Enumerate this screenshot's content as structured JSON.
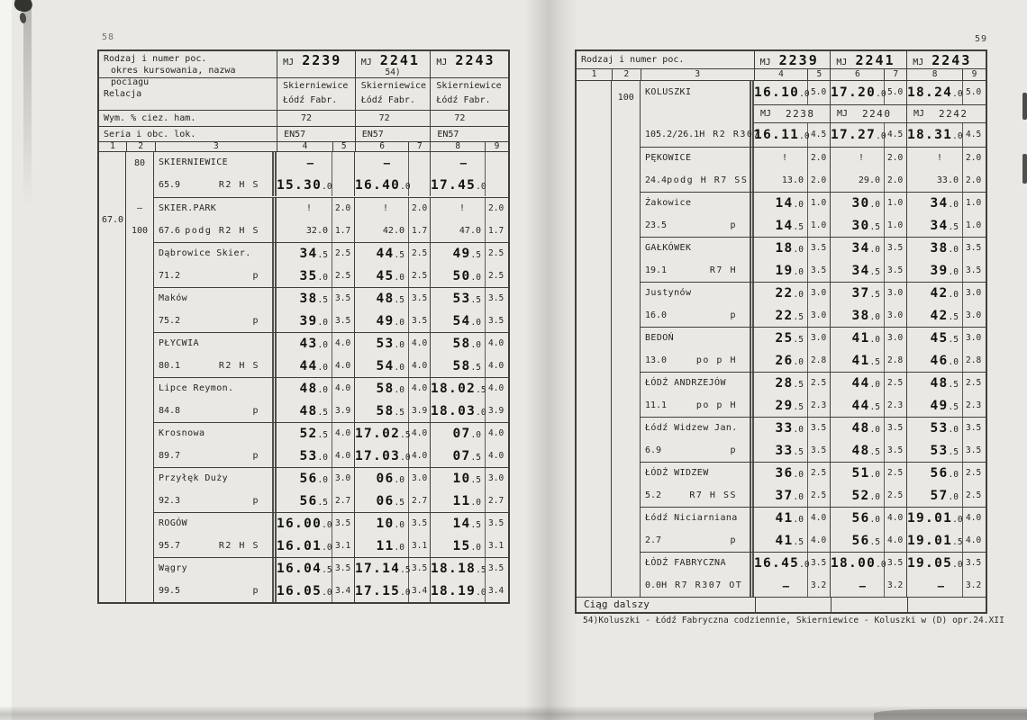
{
  "scan": {
    "left_page_number": "58",
    "right_page_number": "59"
  },
  "left": {
    "header": {
      "kind_line1": "Rodzaj i numer poc.",
      "kind_line2": "okres kursowania, nazwa pociagu",
      "relation_label": "Relacja",
      "brake_label": "Wym. % ciez. ham.",
      "loco_label": "Seria i obc. lok.",
      "col_numbers": [
        "1",
        "2",
        "3",
        "4",
        "5",
        "6",
        "7",
        "8",
        "9"
      ],
      "trains": [
        {
          "prefix": "MJ",
          "number": "2239",
          "note": "",
          "relation_from": "Skierniewice",
          "relation_to": "Łódź Fabr.",
          "brake": "72",
          "loco": "EN57"
        },
        {
          "prefix": "MJ",
          "number": "2241",
          "note": "54)",
          "relation_from": "Skierniewice",
          "relation_to": "Łódź Fabr.",
          "brake": "72",
          "loco": "EN57"
        },
        {
          "prefix": "MJ",
          "number": "2243",
          "note": "",
          "relation_from": "Skierniewice",
          "relation_to": "Łódź Fabr.",
          "brake": "72",
          "loco": "EN57"
        }
      ]
    },
    "stations": [
      {
        "c1": "",
        "c2_top": "80",
        "c2_bot": "",
        "name": "SKIERNIEWICE",
        "km": "65.9",
        "abbr": "R2 H S",
        "small": false,
        "arr": [
          {
            "t": "—",
            "c": ""
          },
          {
            "t": "—",
            "c": ""
          },
          {
            "t": "—",
            "c": ""
          }
        ],
        "dep": [
          {
            "t": "15.30.0",
            "c": ""
          },
          {
            "t": "16.40.0",
            "c": ""
          },
          {
            "t": "17.45.0",
            "c": ""
          }
        ]
      },
      {
        "c1": "67.0",
        "c2_top": "—",
        "c2_bot": "100",
        "name": "SKIER.PARK",
        "km": "67.6",
        "abbr": "podg R2 H S",
        "small": true,
        "arr": [
          {
            "t": "!",
            "c": "2.0"
          },
          {
            "t": "!",
            "c": "2.0"
          },
          {
            "t": "!",
            "c": "2.0"
          }
        ],
        "dep": [
          {
            "t": "32.0",
            "c": "1.7"
          },
          {
            "t": "42.0",
            "c": "1.7"
          },
          {
            "t": "47.0",
            "c": "1.7"
          }
        ]
      },
      {
        "c1": "",
        "c2_top": "",
        "c2_bot": "",
        "name": "Dąbrowice Skier.",
        "km": "71.2",
        "abbr": "p",
        "small": false,
        "arr": [
          {
            "t": "34.5",
            "c": "2.5"
          },
          {
            "t": "44.5",
            "c": "2.5"
          },
          {
            "t": "49.5",
            "c": "2.5"
          }
        ],
        "dep": [
          {
            "t": "35.0",
            "c": "2.5"
          },
          {
            "t": "45.0",
            "c": "2.5"
          },
          {
            "t": "50.0",
            "c": "2.5"
          }
        ]
      },
      {
        "c1": "",
        "c2_top": "",
        "c2_bot": "",
        "name": "Maków",
        "km": "75.2",
        "abbr": "p",
        "small": false,
        "arr": [
          {
            "t": "38.5",
            "c": "3.5"
          },
          {
            "t": "48.5",
            "c": "3.5"
          },
          {
            "t": "53.5",
            "c": "3.5"
          }
        ],
        "dep": [
          {
            "t": "39.0",
            "c": "3.5"
          },
          {
            "t": "49.0",
            "c": "3.5"
          },
          {
            "t": "54.0",
            "c": "3.5"
          }
        ]
      },
      {
        "c1": "",
        "c2_top": "",
        "c2_bot": "",
        "name": "PŁYCWIA",
        "km": "80.1",
        "abbr": "R2 H S",
        "small": false,
        "arr": [
          {
            "t": "43.0",
            "c": "4.0"
          },
          {
            "t": "53.0",
            "c": "4.0"
          },
          {
            "t": "58.0",
            "c": "4.0"
          }
        ],
        "dep": [
          {
            "t": "44.0",
            "c": "4.0"
          },
          {
            "t": "54.0",
            "c": "4.0"
          },
          {
            "t": "58.5",
            "c": "4.0"
          }
        ]
      },
      {
        "c1": "",
        "c2_top": "",
        "c2_bot": "",
        "name": "Lipce Reymon.",
        "km": "84.8",
        "abbr": "p",
        "small": false,
        "arr": [
          {
            "t": "48.0",
            "c": "4.0"
          },
          {
            "t": "58.0",
            "c": "4.0"
          },
          {
            "t": "18.02.5",
            "c": "4.0"
          }
        ],
        "dep": [
          {
            "t": "48.5",
            "c": "3.9"
          },
          {
            "t": "58.5",
            "c": "3.9"
          },
          {
            "t": "18.03.0",
            "c": "3.9"
          }
        ]
      },
      {
        "c1": "",
        "c2_top": "",
        "c2_bot": "",
        "name": "Krosnowa",
        "km": "89.7",
        "abbr": "p",
        "small": false,
        "arr": [
          {
            "t": "52.5",
            "c": "4.0"
          },
          {
            "t": "17.02.5",
            "c": "4.0"
          },
          {
            "t": "07.0",
            "c": "4.0"
          }
        ],
        "dep": [
          {
            "t": "53.0",
            "c": "4.0"
          },
          {
            "t": "17.03.0",
            "c": "4.0"
          },
          {
            "t": "07.5",
            "c": "4.0"
          }
        ]
      },
      {
        "c1": "",
        "c2_top": "",
        "c2_bot": "",
        "name": "Przyłęk Duży",
        "km": "92.3",
        "abbr": "p",
        "small": false,
        "arr": [
          {
            "t": "56.0",
            "c": "3.0"
          },
          {
            "t": "06.0",
            "c": "3.0"
          },
          {
            "t": "10.5",
            "c": "3.0"
          }
        ],
        "dep": [
          {
            "t": "56.5",
            "c": "2.7"
          },
          {
            "t": "06.5",
            "c": "2.7"
          },
          {
            "t": "11.0",
            "c": "2.7"
          }
        ]
      },
      {
        "c1": "",
        "c2_top": "",
        "c2_bot": "",
        "name": "ROGÓW",
        "km": "95.7",
        "abbr": "R2 H S",
        "small": false,
        "arr": [
          {
            "t": "16.00.0",
            "c": "3.5"
          },
          {
            "t": "10.0",
            "c": "3.5"
          },
          {
            "t": "14.5",
            "c": "3.5"
          }
        ],
        "dep": [
          {
            "t": "16.01.0",
            "c": "3.1"
          },
          {
            "t": "11.0",
            "c": "3.1"
          },
          {
            "t": "15.0",
            "c": "3.1"
          }
        ]
      },
      {
        "c1": "",
        "c2_top": "",
        "c2_bot": "",
        "name": "Wągry",
        "km": "99.5",
        "abbr": "p",
        "small": false,
        "arr": [
          {
            "t": "16.04.5",
            "c": "3.5"
          },
          {
            "t": "17.14.5",
            "c": "3.5"
          },
          {
            "t": "18.18.5",
            "c": "3.5"
          }
        ],
        "dep": [
          {
            "t": "16.05.0",
            "c": "3.4"
          },
          {
            "t": "17.15.0",
            "c": "3.4"
          },
          {
            "t": "18.19.0",
            "c": "3.4"
          }
        ]
      }
    ]
  },
  "right": {
    "header": {
      "kind_label": "Rodzaj i numer poc.",
      "col_numbers": [
        "1",
        "2",
        "3",
        "4",
        "5",
        "6",
        "7",
        "8",
        "9"
      ],
      "trains": [
        {
          "prefix": "MJ",
          "number": "2239"
        },
        {
          "prefix": "MJ",
          "number": "2241"
        },
        {
          "prefix": "MJ",
          "number": "2243"
        }
      ]
    },
    "stations": [
      {
        "c1": "",
        "c2_top": "100",
        "c2_bot": "",
        "name": "KOLUSZKI",
        "km": "105.2/26.1",
        "abbr": "H R2 R307",
        "small": false,
        "mid": [
          {
            "prefix": "MJ",
            "number": "2238"
          },
          {
            "prefix": "MJ",
            "number": "2240"
          },
          {
            "prefix": "MJ",
            "number": "2242"
          }
        ],
        "arr": [
          {
            "t": "16.10.0",
            "c": "5.0"
          },
          {
            "t": "17.20.0",
            "c": "5.0"
          },
          {
            "t": "18.24.0",
            "c": "5.0"
          }
        ],
        "dep": [
          {
            "t": "16.11.0",
            "c": "4.5"
          },
          {
            "t": "17.27.0",
            "c": "4.5"
          },
          {
            "t": "18.31.0",
            "c": "4.5"
          }
        ]
      },
      {
        "c1": "",
        "c2_top": "",
        "c2_bot": "",
        "name": "PĘKOWICE",
        "km": "24.4",
        "abbr": "podg H R7 SS",
        "small": true,
        "arr": [
          {
            "t": "!",
            "c": "2.0"
          },
          {
            "t": "!",
            "c": "2.0"
          },
          {
            "t": "!",
            "c": "2.0"
          }
        ],
        "dep": [
          {
            "t": "13.0",
            "c": "2.0"
          },
          {
            "t": "29.0",
            "c": "2.0"
          },
          {
            "t": "33.0",
            "c": "2.0"
          }
        ]
      },
      {
        "c1": "",
        "c2_top": "",
        "c2_bot": "",
        "name": "Żakowice",
        "km": "23.5",
        "abbr": "p",
        "small": false,
        "arr": [
          {
            "t": "14.0",
            "c": "1.0"
          },
          {
            "t": "30.0",
            "c": "1.0"
          },
          {
            "t": "34.0",
            "c": "1.0"
          }
        ],
        "dep": [
          {
            "t": "14.5",
            "c": "1.0"
          },
          {
            "t": "30.5",
            "c": "1.0"
          },
          {
            "t": "34.5",
            "c": "1.0"
          }
        ]
      },
      {
        "c1": "",
        "c2_top": "",
        "c2_bot": "",
        "name": "GAŁKÓWEK",
        "km": "19.1",
        "abbr": "R7 H",
        "small": false,
        "arr": [
          {
            "t": "18.0",
            "c": "3.5"
          },
          {
            "t": "34.0",
            "c": "3.5"
          },
          {
            "t": "38.0",
            "c": "3.5"
          }
        ],
        "dep": [
          {
            "t": "19.0",
            "c": "3.5"
          },
          {
            "t": "34.5",
            "c": "3.5"
          },
          {
            "t": "39.0",
            "c": "3.5"
          }
        ]
      },
      {
        "c1": "",
        "c2_top": "",
        "c2_bot": "",
        "name": "Justynów",
        "km": "16.0",
        "abbr": "p",
        "small": false,
        "arr": [
          {
            "t": "22.0",
            "c": "3.0"
          },
          {
            "t": "37.5",
            "c": "3.0"
          },
          {
            "t": "42.0",
            "c": "3.0"
          }
        ],
        "dep": [
          {
            "t": "22.5",
            "c": "3.0"
          },
          {
            "t": "38.0",
            "c": "3.0"
          },
          {
            "t": "42.5",
            "c": "3.0"
          }
        ]
      },
      {
        "c1": "",
        "c2_top": "",
        "c2_bot": "",
        "name": "BEDOŃ",
        "km": "13.0",
        "abbr": "po p H",
        "small": false,
        "arr": [
          {
            "t": "25.5",
            "c": "3.0"
          },
          {
            "t": "41.0",
            "c": "3.0"
          },
          {
            "t": "45.5",
            "c": "3.0"
          }
        ],
        "dep": [
          {
            "t": "26.0",
            "c": "2.8"
          },
          {
            "t": "41.5",
            "c": "2.8"
          },
          {
            "t": "46.0",
            "c": "2.8"
          }
        ]
      },
      {
        "c1": "",
        "c2_top": "",
        "c2_bot": "",
        "name": "ŁÓDŹ ANDRZEJÓW",
        "km": "11.1",
        "abbr": "po p H",
        "small": false,
        "arr": [
          {
            "t": "28.5",
            "c": "2.5"
          },
          {
            "t": "44.0",
            "c": "2.5"
          },
          {
            "t": "48.5",
            "c": "2.5"
          }
        ],
        "dep": [
          {
            "t": "29.5",
            "c": "2.3"
          },
          {
            "t": "44.5",
            "c": "2.3"
          },
          {
            "t": "49.5",
            "c": "2.3"
          }
        ]
      },
      {
        "c1": "",
        "c2_top": "",
        "c2_bot": "",
        "name": "Łódź Widzew Jan.",
        "km": "6.9",
        "abbr": "p",
        "small": false,
        "arr": [
          {
            "t": "33.0",
            "c": "3.5"
          },
          {
            "t": "48.0",
            "c": "3.5"
          },
          {
            "t": "53.0",
            "c": "3.5"
          }
        ],
        "dep": [
          {
            "t": "33.5",
            "c": "3.5"
          },
          {
            "t": "48.5",
            "c": "3.5"
          },
          {
            "t": "53.5",
            "c": "3.5"
          }
        ]
      },
      {
        "c1": "",
        "c2_top": "",
        "c2_bot": "",
        "name": "ŁÓDŹ WIDZEW",
        "km": "5.2",
        "abbr": "R7 H SS",
        "small": false,
        "arr": [
          {
            "t": "36.0",
            "c": "2.5"
          },
          {
            "t": "51.0",
            "c": "2.5"
          },
          {
            "t": "56.0",
            "c": "2.5"
          }
        ],
        "dep": [
          {
            "t": "37.0",
            "c": "2.5"
          },
          {
            "t": "52.0",
            "c": "2.5"
          },
          {
            "t": "57.0",
            "c": "2.5"
          }
        ]
      },
      {
        "c1": "",
        "c2_top": "",
        "c2_bot": "",
        "name": "Łódź Niciarniana",
        "km": "2.7",
        "abbr": "p",
        "small": false,
        "arr": [
          {
            "t": "41.0",
            "c": "4.0"
          },
          {
            "t": "56.0",
            "c": "4.0"
          },
          {
            "t": "19.01.0",
            "c": "4.0"
          }
        ],
        "dep": [
          {
            "t": "41.5",
            "c": "4.0"
          },
          {
            "t": "56.5",
            "c": "4.0"
          },
          {
            "t": "19.01.5",
            "c": "4.0"
          }
        ]
      },
      {
        "c1": "",
        "c2_top": "",
        "c2_bot": "",
        "name": "ŁÓDŹ FABRYCZNA",
        "km": "0.0",
        "abbr": "H R7 R307 OT",
        "small": false,
        "arr": [
          {
            "t": "16.45.0",
            "c": "3.5"
          },
          {
            "t": "18.00.0",
            "c": "3.5"
          },
          {
            "t": "19.05.0",
            "c": "3.5"
          }
        ],
        "dep": [
          {
            "t": "—",
            "c": "3.2"
          },
          {
            "t": "—",
            "c": "3.2"
          },
          {
            "t": "—",
            "c": "3.2"
          }
        ]
      }
    ],
    "continuation": "Ciąg dalszy",
    "footnote": "54)Koluszki - Łódź Fabryczna codziennie, Skierniewice - Koluszki w (D) opr.24.XII"
  }
}
